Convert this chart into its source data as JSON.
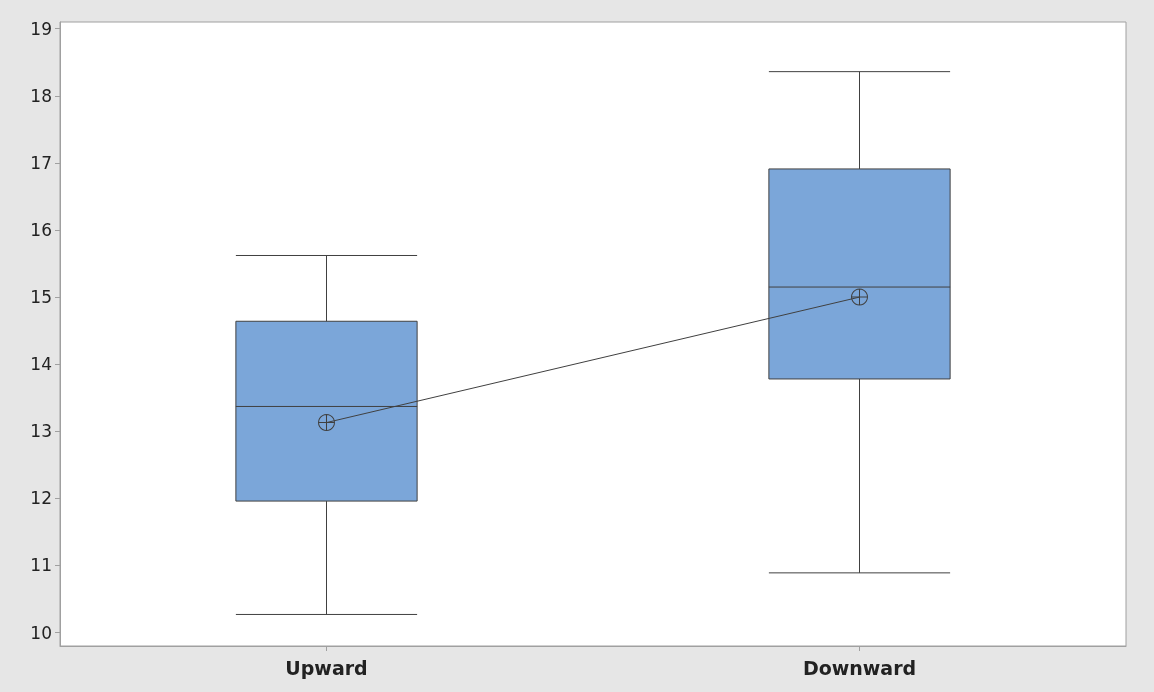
{
  "chart_data": {
    "type": "box",
    "categories": [
      "Upward",
      "Downward"
    ],
    "ylim": [
      9.8,
      19.1
    ],
    "yticks": [
      10,
      11,
      12,
      13,
      14,
      15,
      16,
      17,
      18,
      19
    ],
    "grid": false,
    "series": [
      {
        "type": "box",
        "color": "#7ba6d9",
        "boxes": [
          {
            "low": 10.27,
            "q1": 11.96,
            "median": 13.37,
            "q3": 14.64,
            "high": 15.62
          },
          {
            "low": 10.89,
            "q1": 13.78,
            "median": 15.15,
            "q3": 16.91,
            "high": 18.36
          }
        ]
      },
      {
        "type": "line",
        "color": "#404040",
        "values": [
          13.13,
          15.0
        ],
        "marker": "circle",
        "line_style": "solid"
      }
    ]
  }
}
